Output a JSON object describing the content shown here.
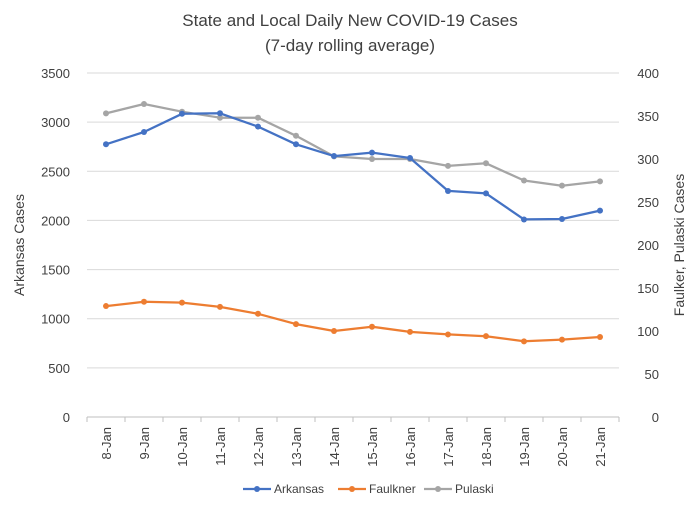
{
  "chart_data": {
    "type": "line",
    "title": "State and Local Daily New COVID-19 Cases",
    "subtitle": "(7-day rolling average)",
    "categories": [
      "8-Jan",
      "9-Jan",
      "10-Jan",
      "11-Jan",
      "12-Jan",
      "13-Jan",
      "14-Jan",
      "15-Jan",
      "16-Jan",
      "17-Jan",
      "18-Jan",
      "19-Jan",
      "20-Jan",
      "21-Jan"
    ],
    "ylabel": "Arkansas Cases",
    "y2label": "Faulker, Pulaski Cases",
    "ylim": [
      0,
      3500
    ],
    "y2lim": [
      0,
      400
    ],
    "yticks": [
      "0",
      "500",
      "1000",
      "1500",
      "2000",
      "2500",
      "3000",
      "3500"
    ],
    "y2ticks": [
      "0",
      "50",
      "100",
      "150",
      "200",
      "250",
      "300",
      "350",
      "400"
    ],
    "grid": "horizontal",
    "legend_position": "bottom",
    "series": [
      {
        "name": "Arkansas",
        "axis": "left",
        "color": "#4472C4",
        "values": [
          2775,
          2900,
          3085,
          3090,
          2955,
          2775,
          2655,
          2690,
          2635,
          2300,
          2275,
          2010,
          2015,
          2100
        ]
      },
      {
        "name": "Faulkner",
        "axis": "right",
        "color": "#ED7D31",
        "values": [
          129,
          134,
          133,
          128,
          120,
          108,
          100,
          105,
          99,
          96,
          94,
          88,
          90,
          93
        ]
      },
      {
        "name": "Pulaski",
        "axis": "right",
        "color": "#A5A5A5",
        "values": [
          353,
          364,
          355,
          348,
          348,
          327,
          303,
          300,
          300,
          292,
          295,
          275,
          269,
          274
        ]
      }
    ]
  }
}
